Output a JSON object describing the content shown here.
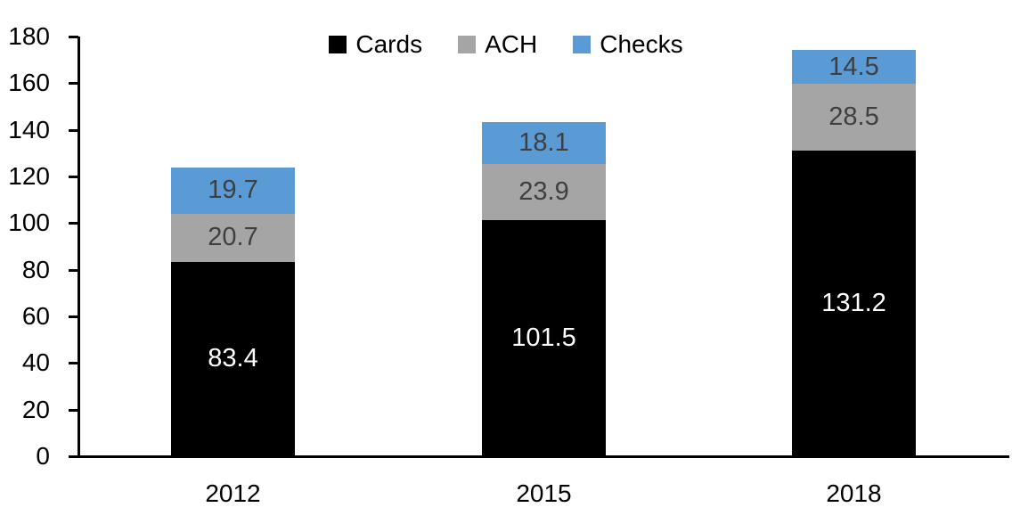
{
  "chart_data": {
    "type": "bar",
    "stacked": true,
    "title": "",
    "categories": [
      "2012",
      "2015",
      "2018"
    ],
    "series": [
      {
        "name": "Cards",
        "color": "#000000",
        "label_color": "#ffffff",
        "values": [
          83.4,
          101.5,
          131.2
        ]
      },
      {
        "name": "ACH",
        "color": "#a5a5a5",
        "label_color": "#3f3f3f",
        "values": [
          20.7,
          23.9,
          28.5
        ]
      },
      {
        "name": "Checks",
        "color": "#5b9bd5",
        "label_color": "#3f3f3f",
        "values": [
          19.7,
          18.1,
          14.5
        ]
      }
    ],
    "totals": [
      123.8,
      143.5,
      174.2
    ],
    "y_axis": {
      "min": 0,
      "max": 180,
      "step": 20,
      "tick_labels": [
        "0",
        "20",
        "40",
        "60",
        "80",
        "100",
        "120",
        "140",
        "160",
        "180"
      ]
    },
    "xlabel": "",
    "ylabel": "",
    "grid": false,
    "data_labels": true,
    "legend": {
      "position": "top",
      "entries": [
        "Cards",
        "ACH",
        "Checks"
      ]
    }
  },
  "colors": {
    "axis": "#000000",
    "background": "#ffffff",
    "cards": "#000000",
    "ach": "#a5a5a5",
    "checks": "#5b9bd5"
  }
}
